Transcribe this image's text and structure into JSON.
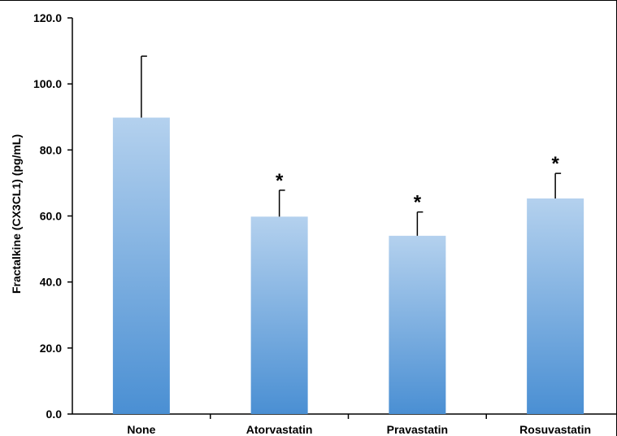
{
  "chart_data": {
    "type": "bar",
    "title": "",
    "xlabel": "",
    "ylabel": "Fractalkine (CX3CL1) (pg/mL)",
    "ylim": [
      0,
      120
    ],
    "yticks": [
      "0.0",
      "20.0",
      "40.0",
      "60.0",
      "80.0",
      "100.0",
      "120.0"
    ],
    "categories": [
      "None",
      "Atorvastatin",
      "Pravastatin",
      "Rosuvastatin"
    ],
    "values": [
      89.8,
      59.8,
      54.0,
      65.3
    ],
    "error_upper": [
      18.6,
      8.0,
      7.2,
      7.6
    ],
    "significance": [
      "",
      "*",
      "*",
      "*"
    ],
    "grid": false,
    "legend": "none",
    "colors": {
      "bar_top": "#b4d1ee",
      "bar_bottom": "#4a8fd3",
      "axis": "#000000"
    }
  }
}
